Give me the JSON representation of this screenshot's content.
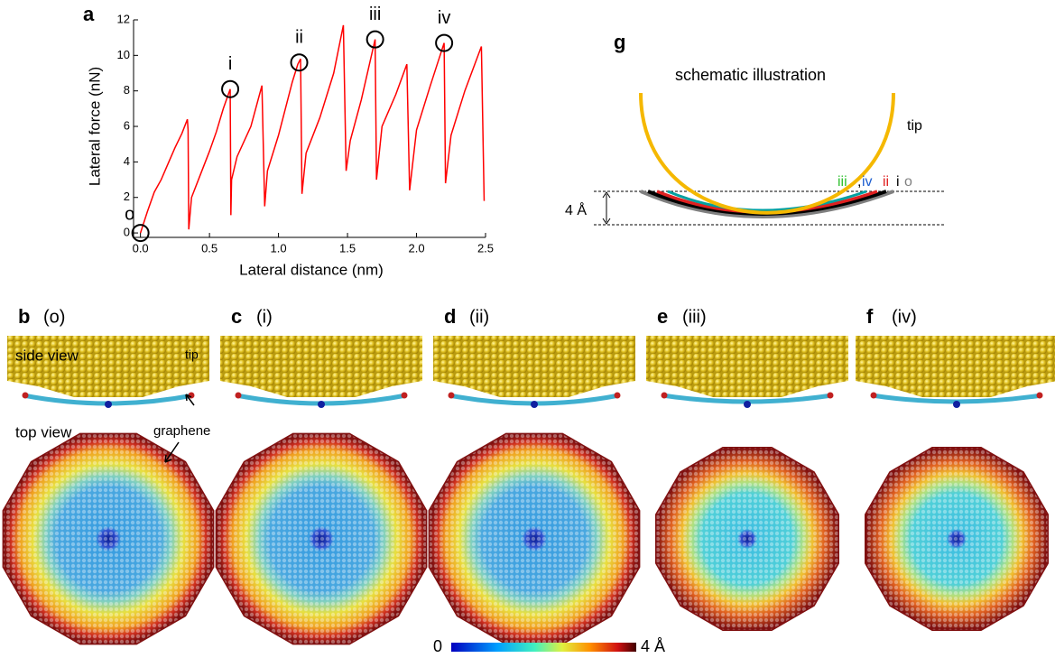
{
  "chart_data": {
    "type": "line",
    "panel_label": "a",
    "x_label": "Lateral distance (nm)",
    "y_label": "Lateral force (nN)",
    "x": [
      0,
      0.05,
      0.1,
      0.15,
      0.2,
      0.25,
      0.3,
      0.34,
      0.345,
      0.35,
      0.37,
      0.42,
      0.5,
      0.55,
      0.6,
      0.65,
      0.655,
      0.66,
      0.7,
      0.8,
      0.88,
      0.9,
      0.92,
      1.0,
      1.1,
      1.14,
      1.16,
      1.17,
      1.2,
      1.3,
      1.4,
      1.47,
      1.49,
      1.52,
      1.6,
      1.7,
      1.71,
      1.75,
      1.85,
      1.93,
      1.95,
      2.0,
      2.1,
      2.2,
      2.21,
      2.25,
      2.35,
      2.47,
      2.49
    ],
    "series": [
      {
        "color": "#ff0000",
        "values": [
          0,
          1.2,
          2.3,
          3.0,
          3.9,
          4.8,
          5.6,
          6.4,
          5.8,
          0.2,
          2.0,
          3.0,
          4.6,
          5.7,
          7.0,
          8.1,
          1.0,
          3.0,
          4.3,
          6.0,
          8.3,
          1.5,
          3.5,
          5.5,
          8.5,
          9.5,
          9.8,
          2.2,
          4.5,
          6.5,
          9.0,
          11.7,
          3.5,
          5.2,
          7.5,
          10.9,
          3.0,
          6.0,
          7.8,
          9.5,
          2.4,
          5.8,
          8.3,
          10.7,
          2.8,
          5.5,
          8.0,
          10.5,
          1.8
        ]
      }
    ],
    "xlim": [
      -0.05,
      2.5
    ],
    "ylim": [
      -0.25,
      12
    ],
    "xticks": [
      {
        "value": 0,
        "label": "0.0"
      },
      {
        "value": 0.5,
        "label": "0.5"
      },
      {
        "value": 1,
        "label": "1.0"
      },
      {
        "value": 1.5,
        "label": "1.5"
      },
      {
        "value": 2,
        "label": "2.0"
      },
      {
        "value": 2.5,
        "label": "2.5"
      }
    ],
    "yticks": [
      0,
      2,
      4,
      6,
      8,
      10,
      12
    ],
    "annotations": [
      {
        "text": "o",
        "x": 0,
        "y": 0
      },
      {
        "text": "i",
        "x": 0.65,
        "y": 8.1
      },
      {
        "text": "ii",
        "x": 1.15,
        "y": 9.6
      },
      {
        "text": "iii",
        "x": 1.7,
        "y": 10.9
      },
      {
        "text": "iv",
        "x": 2.2,
        "y": 10.7
      }
    ]
  },
  "panel_g": {
    "label": "g",
    "title": "schematic illustration",
    "tip": "tip",
    "iii": "iii",
    "comma": ",",
    "iv": "iv",
    "ii": "ii",
    "i": "i",
    "o": "o",
    "depth": "4 Å"
  },
  "panels": [
    {
      "label": "b",
      "state": "(o)"
    },
    {
      "label": "c",
      "state": "(i)"
    },
    {
      "label": "d",
      "state": "(ii)"
    },
    {
      "label": "e",
      "state": "(iii)"
    },
    {
      "label": "f",
      "state": "(iv)"
    }
  ],
  "labels": {
    "side_view": "side view",
    "tip": "tip",
    "top_view": "top view",
    "graphene": "graphene"
  },
  "colorbar": {
    "min_label": "0",
    "max_label": "4 Å"
  }
}
